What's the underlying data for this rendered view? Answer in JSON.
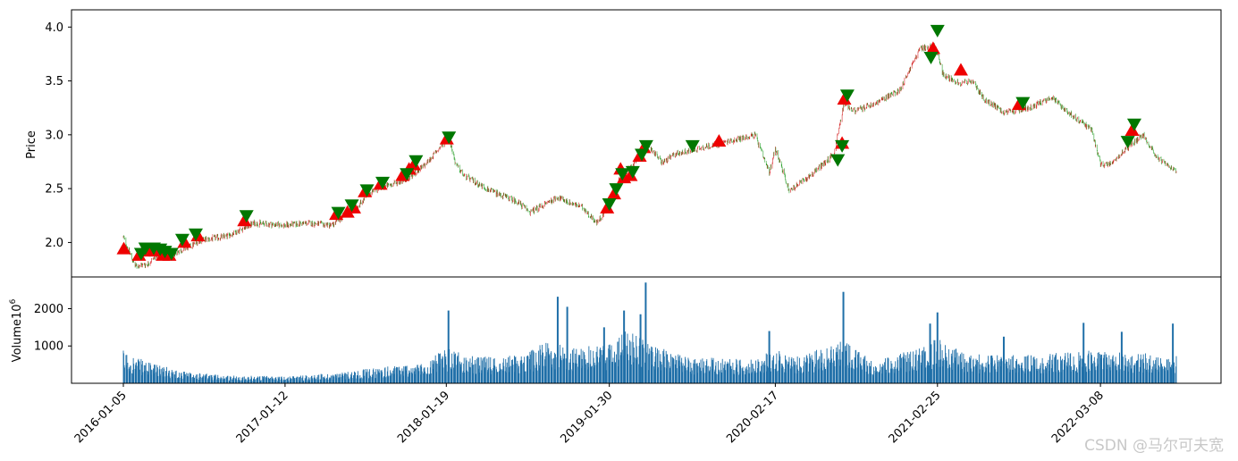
{
  "chart_data": [
    {
      "type": "candlestick",
      "ylabel": "Price",
      "ylim": [
        1.68,
        4.16
      ],
      "yticks": [
        "2.0",
        "2.5",
        "3.0",
        "3.5",
        "4.0"
      ],
      "ytick_values": [
        2.0,
        2.5,
        3.0,
        3.5,
        4.0
      ],
      "x_range": [
        "2016-01-05",
        "2022-08-30"
      ],
      "colors": {
        "up": "#d62728",
        "down": "#2ca02c",
        "buy_marker": "#ee0000",
        "sell_marker": "#007700"
      },
      "price_anchors": [
        [
          "2016-01-05",
          2.05
        ],
        [
          "2016-02-01",
          1.78
        ],
        [
          "2016-03-01",
          1.8
        ],
        [
          "2016-04-01",
          1.92
        ],
        [
          "2016-05-01",
          1.9
        ],
        [
          "2016-06-01",
          1.95
        ],
        [
          "2016-07-01",
          2.02
        ],
        [
          "2016-09-01",
          2.06
        ],
        [
          "2016-11-01",
          2.18
        ],
        [
          "2017-01-12",
          2.16
        ],
        [
          "2017-03-01",
          2.18
        ],
        [
          "2017-05-01",
          2.16
        ],
        [
          "2017-06-01",
          2.26
        ],
        [
          "2017-07-01",
          2.35
        ],
        [
          "2017-08-01",
          2.48
        ],
        [
          "2017-10-01",
          2.56
        ],
        [
          "2017-11-01",
          2.62
        ],
        [
          "2017-12-01",
          2.72
        ],
        [
          "2018-01-25",
          2.98
        ],
        [
          "2018-02-10",
          2.72
        ],
        [
          "2018-03-01",
          2.62
        ],
        [
          "2018-05-01",
          2.48
        ],
        [
          "2018-07-01",
          2.38
        ],
        [
          "2018-08-01",
          2.28
        ],
        [
          "2018-10-01",
          2.42
        ],
        [
          "2018-12-01",
          2.32
        ],
        [
          "2019-01-01",
          2.18
        ],
        [
          "2019-01-30",
          2.34
        ],
        [
          "2019-02-25",
          2.62
        ],
        [
          "2019-03-15",
          2.68
        ],
        [
          "2019-04-10",
          2.8
        ],
        [
          "2019-05-01",
          2.9
        ],
        [
          "2019-06-01",
          2.74
        ],
        [
          "2019-07-01",
          2.82
        ],
        [
          "2019-09-01",
          2.88
        ],
        [
          "2019-11-01",
          2.94
        ],
        [
          "2020-01-01",
          3.0
        ],
        [
          "2020-02-03",
          2.64
        ],
        [
          "2020-02-17",
          2.88
        ],
        [
          "2020-03-20",
          2.48
        ],
        [
          "2020-05-01",
          2.6
        ],
        [
          "2020-07-01",
          2.82
        ],
        [
          "2020-07-25",
          3.3
        ],
        [
          "2020-08-15",
          3.22
        ],
        [
          "2020-10-01",
          3.28
        ],
        [
          "2020-12-01",
          3.42
        ],
        [
          "2021-01-15",
          3.8
        ],
        [
          "2021-02-20",
          3.82
        ],
        [
          "2021-03-10",
          3.56
        ],
        [
          "2021-04-15",
          3.48
        ],
        [
          "2021-05-15",
          3.5
        ],
        [
          "2021-06-15",
          3.32
        ],
        [
          "2021-08-01",
          3.2
        ],
        [
          "2021-10-01",
          3.26
        ],
        [
          "2021-11-15",
          3.35
        ],
        [
          "2022-01-01",
          3.18
        ],
        [
          "2022-02-15",
          3.05
        ],
        [
          "2022-03-08",
          2.72
        ],
        [
          "2022-04-01",
          2.74
        ],
        [
          "2022-05-15",
          2.9
        ],
        [
          "2022-06-15",
          3.0
        ],
        [
          "2022-07-15",
          2.8
        ],
        [
          "2022-08-30",
          2.65
        ]
      ],
      "buy_markers": [
        [
          "2016-01-06",
          1.94
        ],
        [
          "2016-02-10",
          1.88
        ],
        [
          "2016-02-20",
          1.92
        ],
        [
          "2016-03-01",
          1.93
        ],
        [
          "2016-03-20",
          1.92
        ],
        [
          "2016-04-05",
          1.88
        ],
        [
          "2016-04-20",
          1.88
        ],
        [
          "2016-05-25",
          2.0
        ],
        [
          "2016-06-25",
          2.06
        ],
        [
          "2016-10-10",
          2.2
        ],
        [
          "2017-05-10",
          2.26
        ],
        [
          "2017-06-05",
          2.28
        ],
        [
          "2017-06-20",
          2.32
        ],
        [
          "2017-07-15",
          2.47
        ],
        [
          "2017-08-20",
          2.54
        ],
        [
          "2017-10-10",
          2.62
        ],
        [
          "2017-10-25",
          2.68
        ],
        [
          "2017-11-05",
          2.72
        ],
        [
          "2018-01-20",
          2.96
        ],
        [
          "2019-01-25",
          2.32
        ],
        [
          "2019-02-10",
          2.45
        ],
        [
          "2019-02-25",
          2.68
        ],
        [
          "2019-03-05",
          2.6
        ],
        [
          "2019-03-20",
          2.62
        ],
        [
          "2019-04-10",
          2.8
        ],
        [
          "2019-04-20",
          2.88
        ],
        [
          "2019-10-10",
          2.94
        ],
        [
          "2020-07-20",
          2.92
        ],
        [
          "2020-07-25",
          3.33
        ],
        [
          "2021-02-15",
          3.8
        ],
        [
          "2021-04-20",
          3.6
        ],
        [
          "2021-09-01",
          3.28
        ],
        [
          "2022-05-20",
          3.04
        ]
      ],
      "sell_markers": [
        [
          "2016-02-15",
          1.9
        ],
        [
          "2016-02-25",
          1.95
        ],
        [
          "2016-03-15",
          1.95
        ],
        [
          "2016-03-30",
          1.94
        ],
        [
          "2016-04-10",
          1.92
        ],
        [
          "2016-04-25",
          1.9
        ],
        [
          "2016-05-20",
          2.03
        ],
        [
          "2016-06-20",
          2.08
        ],
        [
          "2016-10-15",
          2.25
        ],
        [
          "2017-05-15",
          2.28
        ],
        [
          "2017-06-15",
          2.35
        ],
        [
          "2017-07-20",
          2.49
        ],
        [
          "2017-08-25",
          2.56
        ],
        [
          "2017-10-20",
          2.64
        ],
        [
          "2017-11-10",
          2.76
        ],
        [
          "2018-01-25",
          2.98
        ],
        [
          "2019-01-30",
          2.36
        ],
        [
          "2019-02-15",
          2.5
        ],
        [
          "2019-03-01",
          2.64
        ],
        [
          "2019-03-25",
          2.66
        ],
        [
          "2019-04-15",
          2.82
        ],
        [
          "2019-04-25",
          2.9
        ],
        [
          "2019-08-10",
          2.9
        ],
        [
          "2020-07-10",
          2.77
        ],
        [
          "2020-07-20",
          2.9
        ],
        [
          "2020-08-01",
          3.37
        ],
        [
          "2021-02-10",
          3.72
        ],
        [
          "2021-02-25",
          3.97
        ],
        [
          "2021-09-10",
          3.3
        ],
        [
          "2022-05-10",
          2.94
        ],
        [
          "2022-05-25",
          3.1
        ]
      ]
    },
    {
      "type": "bar",
      "ylabel": "Volume",
      "ylabel_unit": "10",
      "ylabel_exponent": "6",
      "ylim": [
        0,
        2850
      ],
      "yticks": [
        "1000",
        "2000"
      ],
      "ytick_values": [
        1000,
        2000
      ],
      "color": "#1f6fa8",
      "volume_anchors": [
        [
          "2016-01-05",
          650
        ],
        [
          "2016-03-01",
          420
        ],
        [
          "2016-06-01",
          220
        ],
        [
          "2016-09-01",
          160
        ],
        [
          "2017-01-12",
          140
        ],
        [
          "2017-05-01",
          200
        ],
        [
          "2017-08-01",
          300
        ],
        [
          "2017-12-01",
          420
        ],
        [
          "2018-01-19",
          700
        ],
        [
          "2018-04-01",
          520
        ],
        [
          "2018-07-01",
          560
        ],
        [
          "2018-09-15",
          850
        ],
        [
          "2018-11-01",
          700
        ],
        [
          "2019-01-30",
          780
        ],
        [
          "2019-03-10",
          1100
        ],
        [
          "2019-05-01",
          780
        ],
        [
          "2019-08-01",
          520
        ],
        [
          "2020-01-01",
          480
        ],
        [
          "2020-02-17",
          700
        ],
        [
          "2020-04-01",
          520
        ],
        [
          "2020-07-25",
          850
        ],
        [
          "2020-10-01",
          420
        ],
        [
          "2021-01-15",
          720
        ],
        [
          "2021-02-25",
          900
        ],
        [
          "2021-05-01",
          580
        ],
        [
          "2021-09-01",
          560
        ],
        [
          "2022-01-01",
          620
        ],
        [
          "2022-03-08",
          700
        ],
        [
          "2022-05-20",
          620
        ],
        [
          "2022-08-30",
          550
        ]
      ],
      "volume_spikes": [
        [
          "2018-01-24",
          1950
        ],
        [
          "2018-10-03",
          2320
        ],
        [
          "2018-10-25",
          2050
        ],
        [
          "2019-01-18",
          1500
        ],
        [
          "2019-03-05",
          1950
        ],
        [
          "2019-04-12",
          1850
        ],
        [
          "2019-04-24",
          2700
        ],
        [
          "2020-02-03",
          1400
        ],
        [
          "2020-07-23",
          2450
        ],
        [
          "2021-02-08",
          1600
        ],
        [
          "2021-02-25",
          1900
        ],
        [
          "2021-07-28",
          1250
        ],
        [
          "2022-01-28",
          1620
        ],
        [
          "2022-04-26",
          1380
        ],
        [
          "2022-08-22",
          1600
        ]
      ]
    }
  ],
  "x_axis": {
    "ticks": [
      "2016-01-05",
      "2017-01-12",
      "2018-01-19",
      "2019-01-30",
      "2020-02-17",
      "2021-02-25",
      "2022-03-08"
    ],
    "rotation": 45
  },
  "watermark": "CSDN @马尔可夫宽"
}
